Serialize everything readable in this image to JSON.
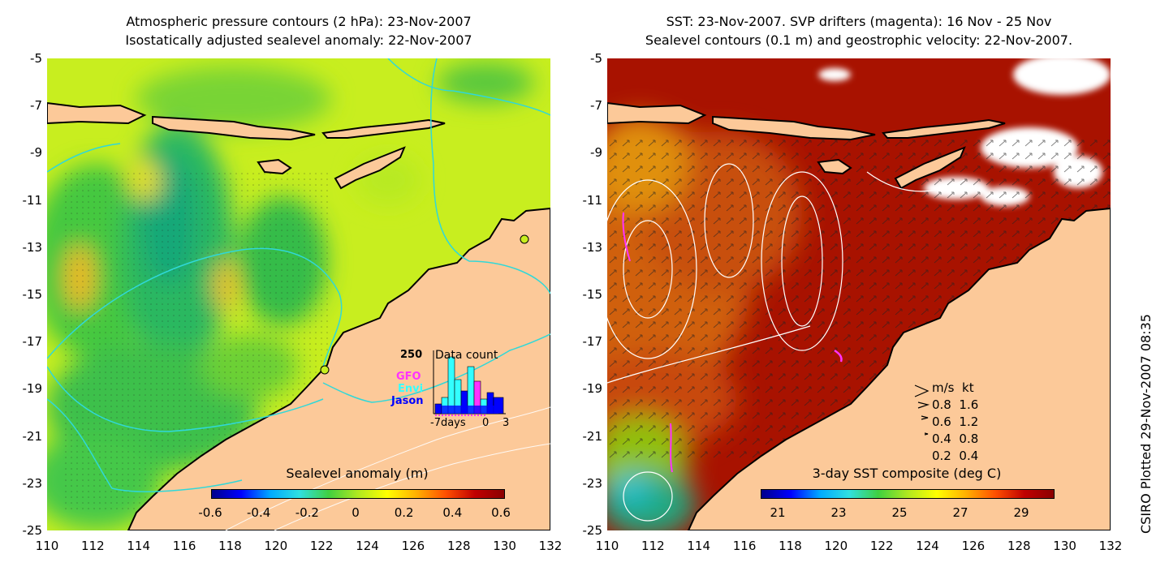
{
  "left_panel": {
    "title_line1": "Atmospheric pressure contours (2 hPa): 23-Nov-2007",
    "title_line2": "Isostatically adjusted sealevel anomaly: 22-Nov-2007",
    "colorbar_title": "Sealevel anomaly (m)",
    "colorbar_ticks": [
      "-0.6",
      "-0.4",
      "-0.2",
      "0",
      "0.2",
      "0.4",
      "0.6"
    ],
    "inset": {
      "max_label": "250",
      "title": "Data count",
      "legend": [
        {
          "name": "GFO",
          "color": "#ff33ff"
        },
        {
          "name": "Envi",
          "color": "#33ffff"
        },
        {
          "name": "Jason",
          "color": "#0000ff"
        }
      ],
      "x_ticks": [
        "-7days",
        "0",
        "3"
      ]
    }
  },
  "right_panel": {
    "title_line1": "SST: 23-Nov-2007. SVP drifters (magenta): 16 Nov - 25 Nov",
    "title_line2": "Sealevel contours (0.1 m) and geostrophic velocity: 22-Nov-2007.",
    "colorbar_title": "3-day SST composite (deg C)",
    "colorbar_ticks": [
      "21",
      "23",
      "25",
      "27",
      "29"
    ],
    "velocity_legend": {
      "header": [
        "m/s",
        "kt"
      ],
      "rows": [
        [
          "0.8",
          "1.6"
        ],
        [
          "0.6",
          "1.2"
        ],
        [
          "0.4",
          "0.8"
        ],
        [
          "0.2",
          "0.4"
        ]
      ]
    }
  },
  "axes": {
    "y_ticks": [
      "-5",
      "-7",
      "-9",
      "-11",
      "-13",
      "-15",
      "-17",
      "-19",
      "-21",
      "-23",
      "-25"
    ],
    "x_ticks": [
      "110",
      "112",
      "114",
      "116",
      "118",
      "120",
      "122",
      "124",
      "126",
      "128",
      "130",
      "132"
    ]
  },
  "credit": "CSIRO Plotted 29-Nov-2007 08:35",
  "colors": {
    "land": "#fcc999",
    "sst_warm": "#a81200",
    "sla_base": "#c8ee1f"
  }
}
